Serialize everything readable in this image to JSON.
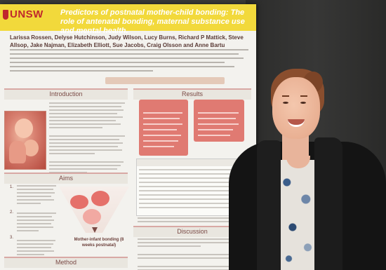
{
  "poster": {
    "logo": "UNSW",
    "title": "Predictors of postnatal mother-child bonding: The role of antenatal bonding, maternal substance use and mental health.",
    "authors": "Larissa Rossen, Delyse Hutchinson, Judy Wilson, Lucy Burns, Richard P Mattick, Steve Allsop, Jake Najman, Elizabeth Elliott, Sue Jacobs, Craig Olsson and Anne Bartu",
    "sections": {
      "introduction": "Introduction",
      "aims": "Aims",
      "method": "Method",
      "results": "Results",
      "discussion": "Discussion"
    },
    "aims_numbers": [
      "1.",
      "2.",
      "3."
    ],
    "diagram_label": "Mother-infant bonding (8 weeks postnatal)"
  },
  "colors": {
    "header": "#f2d93b",
    "brand_red": "#c0282d",
    "box_red": "#e07a72"
  }
}
